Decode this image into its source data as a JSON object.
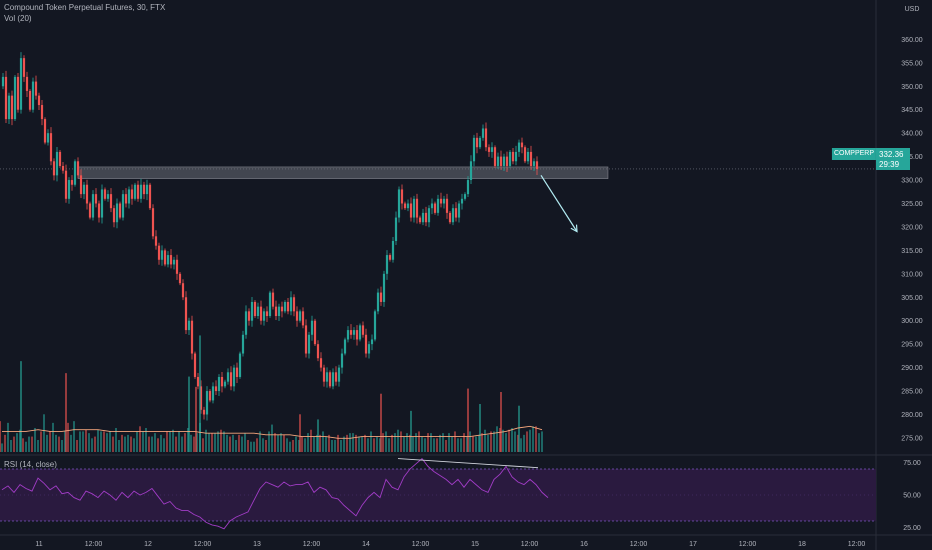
{
  "header": {
    "title": "Compound Token Perpetual Futures, 30, FTX",
    "volume_indicator": "Vol (20)",
    "rsi_indicator": "RSI (14, close)",
    "currency": "USD"
  },
  "price_badge": {
    "symbol": "COMPPERP",
    "last_price": "332.36",
    "countdown": "29:39"
  },
  "colors": {
    "background": "#131722",
    "up": "#26a69a",
    "down": "#ef5350",
    "volume_ma": "#f7a77d",
    "rsi_line": "#a13cc6",
    "rsi_band": "#2a1a3f",
    "resistance_zone": "#d1d4dc",
    "arrow": "#b2ebf2"
  },
  "chart_data": [
    {
      "type": "candlestick",
      "title": "Compound Token Perpetual Futures, 30, FTX",
      "ylabel": "USD",
      "y_ticks": [
        "360.00",
        "355.00",
        "350.00",
        "345.00",
        "340.00",
        "335.00",
        "330.00",
        "325.00",
        "320.00",
        "315.00",
        "310.00",
        "305.00",
        "300.00",
        "295.00",
        "290.00",
        "285.00",
        "280.00",
        "275.00"
      ],
      "ylim": [
        272,
        362
      ],
      "x_ticks": [
        "11",
        "12:00",
        "12",
        "12:00",
        "13",
        "12:00",
        "14",
        "12:00",
        "15",
        "12:00",
        "16",
        "12:00",
        "17",
        "12:00",
        "18",
        "12:00"
      ],
      "last_price": 332.36,
      "path": [
        [
          0,
          350
        ],
        [
          3,
          352
        ],
        [
          6,
          343
        ],
        [
          9,
          348
        ],
        [
          12,
          343
        ],
        [
          15,
          352
        ],
        [
          18,
          345
        ],
        [
          21,
          356
        ],
        [
          24,
          352
        ],
        [
          27,
          349
        ],
        [
          30,
          345
        ],
        [
          33,
          351
        ],
        [
          36,
          348
        ],
        [
          39,
          346
        ],
        [
          42,
          343
        ],
        [
          45,
          338
        ],
        [
          48,
          340
        ],
        [
          51,
          334
        ],
        [
          54,
          331
        ],
        [
          57,
          336
        ],
        [
          60,
          333
        ],
        [
          63,
          332
        ],
        [
          66,
          326
        ],
        [
          69,
          330
        ],
        [
          72,
          329
        ],
        [
          75,
          334
        ],
        [
          78,
          331
        ],
        [
          81,
          327
        ],
        [
          84,
          329
        ],
        [
          87,
          325
        ],
        [
          90,
          322
        ],
        [
          93,
          327
        ],
        [
          96,
          325
        ],
        [
          99,
          322
        ],
        [
          102,
          328
        ],
        [
          105,
          326
        ],
        [
          108,
          327
        ],
        [
          111,
          324
        ],
        [
          114,
          321
        ],
        [
          117,
          325
        ],
        [
          120,
          322
        ],
        [
          123,
          327
        ],
        [
          126,
          325
        ],
        [
          129,
          328
        ],
        [
          132,
          326
        ],
        [
          135,
          329
        ],
        [
          138,
          326
        ],
        [
          141,
          329
        ],
        [
          144,
          327
        ],
        [
          147,
          329
        ],
        [
          150,
          324
        ],
        [
          153,
          318
        ],
        [
          156,
          316
        ],
        [
          159,
          313
        ],
        [
          162,
          315
        ],
        [
          165,
          312
        ],
        [
          168,
          314
        ],
        [
          171,
          312
        ],
        [
          174,
          313
        ],
        [
          177,
          310
        ],
        [
          180,
          308
        ],
        [
          183,
          305
        ],
        [
          186,
          298
        ],
        [
          189,
          300
        ],
        [
          192,
          293
        ],
        [
          195,
          288
        ],
        [
          198,
          286
        ],
        [
          201,
          281
        ],
        [
          204,
          280
        ],
        [
          207,
          285
        ],
        [
          210,
          283
        ],
        [
          213,
          286
        ],
        [
          216,
          285
        ],
        [
          219,
          288
        ],
        [
          222,
          286
        ],
        [
          225,
          287
        ],
        [
          228,
          289
        ],
        [
          231,
          286
        ],
        [
          234,
          290
        ],
        [
          237,
          288
        ],
        [
          240,
          293
        ],
        [
          243,
          297
        ],
        [
          246,
          302
        ],
        [
          249,
          300
        ],
        [
          252,
          304
        ],
        [
          255,
          301
        ],
        [
          258,
          303
        ],
        [
          261,
          300
        ],
        [
          264,
          302
        ],
        [
          267,
          301
        ],
        [
          270,
          306
        ],
        [
          273,
          303
        ],
        [
          276,
          301
        ],
        [
          279,
          303
        ],
        [
          282,
          302
        ],
        [
          285,
          304
        ],
        [
          288,
          302
        ],
        [
          291,
          305
        ],
        [
          294,
          302
        ],
        [
          297,
          300
        ],
        [
          300,
          302
        ],
        [
          303,
          299
        ],
        [
          306,
          293
        ],
        [
          309,
          297
        ],
        [
          312,
          300
        ],
        [
          315,
          295
        ],
        [
          318,
          292
        ],
        [
          321,
          290
        ],
        [
          324,
          287
        ],
        [
          327,
          289
        ],
        [
          330,
          286
        ],
        [
          333,
          289
        ],
        [
          336,
          287
        ],
        [
          339,
          290
        ],
        [
          342,
          293
        ],
        [
          345,
          296
        ],
        [
          348,
          298
        ],
        [
          351,
          297
        ],
        [
          354,
          298
        ],
        [
          357,
          296
        ],
        [
          360,
          299
        ],
        [
          363,
          297
        ],
        [
          366,
          293
        ],
        [
          369,
          295
        ],
        [
          372,
          296
        ],
        [
          375,
          302
        ],
        [
          378,
          306
        ],
        [
          381,
          304
        ],
        [
          384,
          310
        ],
        [
          387,
          314
        ],
        [
          390,
          313
        ],
        [
          393,
          317
        ],
        [
          396,
          322
        ],
        [
          399,
          328
        ],
        [
          402,
          325
        ],
        [
          405,
          324
        ],
        [
          408,
          325
        ],
        [
          411,
          322
        ],
        [
          414,
          326
        ],
        [
          417,
          322
        ],
        [
          420,
          321
        ],
        [
          423,
          323
        ],
        [
          426,
          321
        ],
        [
          429,
          324
        ],
        [
          432,
          325
        ],
        [
          435,
          323
        ],
        [
          438,
          326
        ],
        [
          441,
          325
        ],
        [
          444,
          326
        ],
        [
          447,
          323
        ],
        [
          450,
          321
        ],
        [
          453,
          324
        ],
        [
          456,
          322
        ],
        [
          459,
          325
        ],
        [
          462,
          326
        ],
        [
          465,
          327
        ],
        [
          468,
          330
        ],
        [
          471,
          334
        ],
        [
          474,
          339
        ],
        [
          477,
          337
        ],
        [
          480,
          339
        ],
        [
          483,
          341
        ],
        [
          486,
          337
        ],
        [
          489,
          336
        ],
        [
          492,
          337
        ],
        [
          495,
          333
        ],
        [
          498,
          335
        ],
        [
          501,
          333
        ],
        [
          504,
          335
        ],
        [
          507,
          333
        ],
        [
          510,
          336
        ],
        [
          513,
          334
        ],
        [
          516,
          336
        ],
        [
          519,
          338
        ],
        [
          522,
          337
        ],
        [
          525,
          334
        ],
        [
          528,
          336
        ],
        [
          531,
          333
        ],
        [
          534,
          334
        ],
        [
          537,
          332.36
        ]
      ],
      "zones": [
        {
          "label": "",
          "x_start": 78,
          "x_end": 608,
          "y_low": 330.3,
          "y_high": 332.8
        }
      ],
      "lines": [
        {
          "kind": "arrow",
          "points": [
            [
              541,
              331
            ],
            [
              577,
              319
            ]
          ]
        }
      ]
    },
    {
      "type": "bar",
      "title": "Vol (20)",
      "x_start": 2,
      "x_step": 3,
      "values": [
        5,
        10,
        17,
        7,
        9,
        11,
        13,
        8,
        6,
        9,
        9,
        14,
        7,
        12,
        22,
        10,
        12,
        17,
        10,
        9,
        7,
        12,
        17,
        10,
        18,
        7,
        12,
        12,
        13,
        11,
        8,
        9,
        13,
        12,
        12,
        11,
        12,
        9,
        14,
        7,
        10,
        9,
        10,
        9,
        8,
        12,
        15,
        12,
        14,
        9,
        9,
        11,
        8,
        10,
        8,
        12,
        12,
        13,
        9,
        12,
        9,
        11,
        14,
        10,
        9,
        11,
        17,
        8,
        13,
        11,
        11,
        11,
        12,
        13,
        12,
        10,
        9,
        10,
        7,
        10,
        9,
        11,
        7,
        6,
        6,
        8,
        12,
        8,
        7,
        12,
        16,
        11,
        10,
        11,
        10,
        8,
        6,
        7,
        9,
        7,
        9,
        8,
        11,
        13,
        9,
        10,
        10,
        12,
        9,
        10,
        7,
        7,
        10,
        7,
        9,
        10,
        11,
        11,
        10,
        9,
        9,
        10,
        8,
        12,
        8,
        9,
        8,
        11,
        12,
        8,
        10,
        11,
        13,
        12,
        9,
        11,
        10,
        9,
        11,
        12,
        9,
        8,
        11,
        11,
        8,
        8,
        10,
        11,
        7,
        11,
        9,
        12,
        8,
        8,
        11,
        9,
        12,
        9,
        9,
        10,
        11,
        13,
        10,
        12,
        12,
        15,
        14,
        13,
        11,
        13,
        14,
        12,
        10,
        8,
        10,
        12,
        13,
        15,
        15,
        11,
        12
      ],
      "highlights": [
        [
          0,
          18
        ],
        [
          21,
          53
        ],
        [
          66,
          46
        ],
        [
          189,
          44
        ],
        [
          196,
          38
        ],
        [
          200,
          68
        ],
        [
          300,
          22
        ],
        [
          318,
          19
        ],
        [
          381,
          34
        ],
        [
          411,
          24
        ],
        [
          468,
          37
        ],
        [
          480,
          28
        ],
        [
          501,
          35
        ],
        [
          519,
          27
        ]
      ],
      "ma": [
        12,
        12,
        12,
        13,
        12,
        12,
        13,
        13,
        13,
        12,
        12,
        12,
        12,
        12,
        12,
        12,
        12,
        11,
        11,
        11,
        11,
        11,
        10,
        10,
        10,
        9,
        9,
        9,
        8,
        8,
        9,
        9,
        9,
        9,
        9,
        9,
        9,
        9,
        9,
        9,
        10,
        11,
        12,
        14,
        15,
        13
      ]
    },
    {
      "type": "line",
      "title": "RSI (14, close)",
      "y_ticks": [
        "75.00",
        "50.00",
        "25.00"
      ],
      "ylim": [
        20,
        80
      ],
      "bands": [
        30,
        70
      ],
      "x_start": 2,
      "x_step": 6,
      "values": [
        54,
        57,
        52,
        58,
        55,
        53,
        63,
        59,
        54,
        57,
        51,
        52,
        48,
        46,
        53,
        51,
        48,
        53,
        50,
        46,
        52,
        48,
        53,
        50,
        52,
        55,
        49,
        43,
        45,
        40,
        38,
        38,
        35,
        33,
        29,
        27,
        26,
        24,
        30,
        33,
        35,
        37,
        46,
        55,
        60,
        58,
        56,
        60,
        57,
        58,
        58,
        60,
        52,
        56,
        54,
        48,
        47,
        42,
        38,
        34,
        42,
        48,
        52,
        48,
        62,
        56,
        54,
        64,
        70,
        74,
        78,
        72,
        68,
        65,
        62,
        58,
        62,
        56,
        62,
        58,
        54,
        52,
        62,
        66,
        72,
        64,
        60,
        58,
        62,
        58,
        52,
        48
      ],
      "trendlines": [
        {
          "kind": "divergence",
          "points": [
            [
              398,
              78
            ],
            [
              538,
              71
            ]
          ]
        }
      ]
    }
  ]
}
